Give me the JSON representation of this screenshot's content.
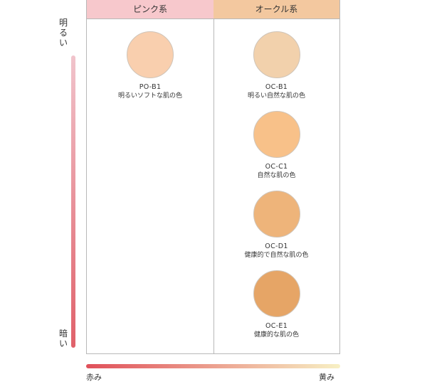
{
  "brightness_axis": {
    "top_label": "明るい",
    "bottom_label": "暗い",
    "gradient": [
      "#f1c4cc",
      "#e0616a"
    ]
  },
  "hue_axis": {
    "left_label": "赤み",
    "right_label": "黄み",
    "gradient": [
      "#e0505a",
      "#f7f0c4"
    ]
  },
  "columns": [
    {
      "header": "ピンク系",
      "header_color": "#f7c8cc",
      "swatches": [
        {
          "code": "PO-B1",
          "description": "明るいソフトな肌の色",
          "color": "#f9cfae"
        }
      ]
    },
    {
      "header": "オークル系",
      "header_color": "#f3c89f",
      "swatches": [
        {
          "code": "OC-B1",
          "description": "明るい自然な肌の色",
          "color": "#f2d1ac"
        },
        {
          "code": "OC-C1",
          "description": "自然な肌の色",
          "color": "#f8c189"
        },
        {
          "code": "OC-D1",
          "description": "健康的で自然な肌の色",
          "color": "#eeb47a"
        },
        {
          "code": "OC-E1",
          "description": "健康的な肌の色",
          "color": "#e6a566"
        }
      ]
    }
  ]
}
